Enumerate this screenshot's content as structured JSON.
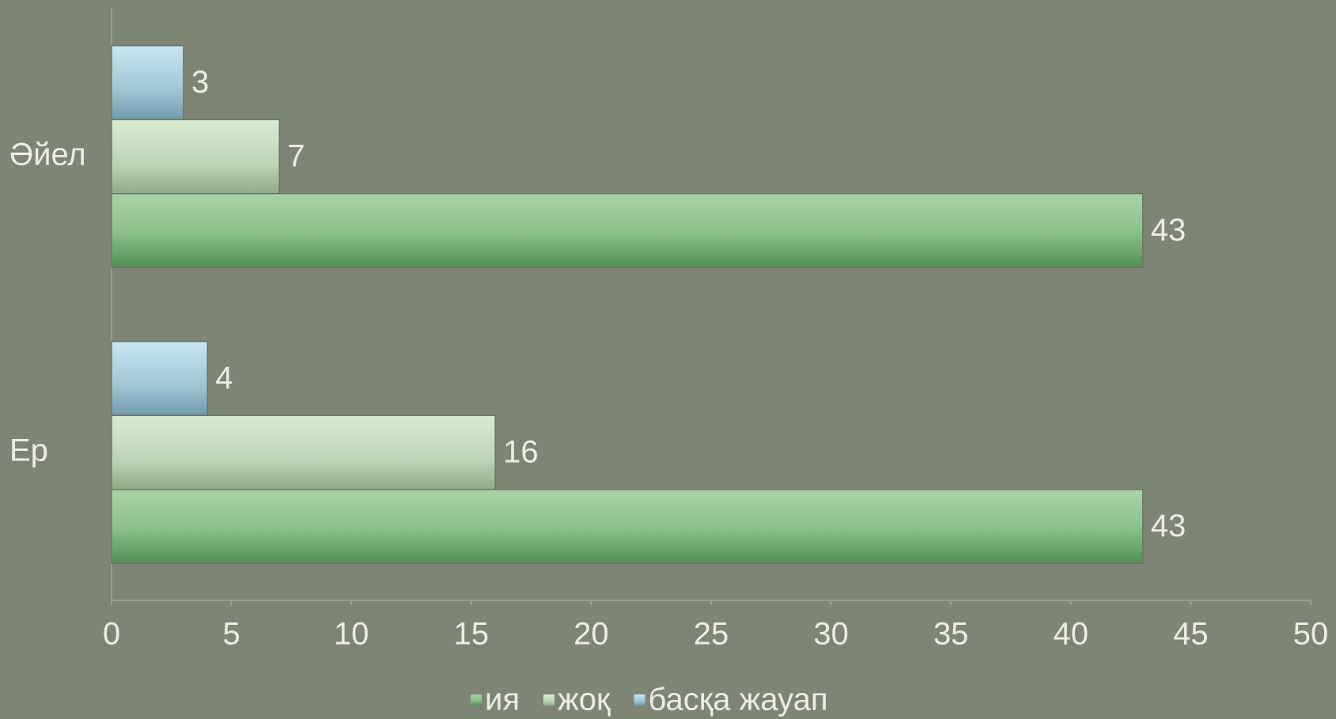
{
  "chart_data": {
    "type": "bar",
    "orientation": "horizontal",
    "categories": [
      "Әйел",
      "Ер"
    ],
    "series": [
      {
        "name": "ия",
        "color": "#5e9e5e",
        "values": [
          43,
          43
        ]
      },
      {
        "name": "жоқ",
        "color": "#c6dcbf",
        "values": [
          7,
          16
        ]
      },
      {
        "name": "басқа жауап",
        "color": "#a6cbd9",
        "values": [
          3,
          4
        ]
      }
    ],
    "xlim": [
      0,
      50
    ],
    "xticks": [
      0,
      5,
      10,
      15,
      20,
      25,
      30,
      35,
      40,
      45,
      50
    ],
    "legend": "bottom",
    "data_labels": true
  }
}
